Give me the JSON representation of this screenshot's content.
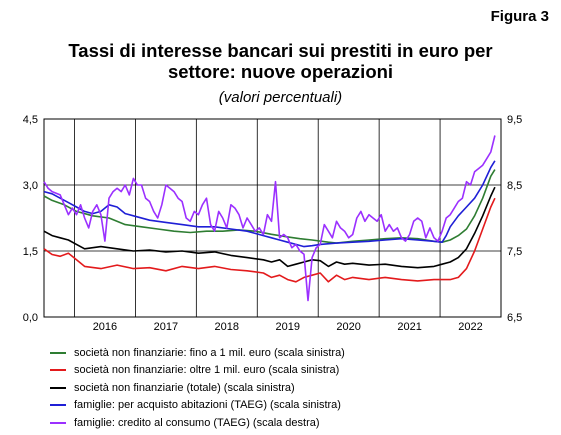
{
  "figure_label": "Figura 3",
  "title_line1": "Tassi di interesse bancari sui prestiti in euro per",
  "title_line2": "settore: nuove operazioni",
  "subtitle": "(valori percentuali)",
  "chart_data": {
    "type": "line",
    "x_range": [
      "2015-07",
      "2022-12"
    ],
    "x_tick_labels": [
      "2016",
      "2017",
      "2018",
      "2019",
      "2020",
      "2021",
      "2022"
    ],
    "y_left": {
      "ticks": [
        "0,0",
        "1,5",
        "3,0",
        "4,5"
      ],
      "min": 0,
      "max": 4.5
    },
    "y_right": {
      "ticks": [
        "6,5",
        "7,5",
        "8,5",
        "9,5"
      ],
      "min": 6.5,
      "max": 9.5
    },
    "grid": true,
    "legend_position": "bottom",
    "series": [
      {
        "name": "società non finanziarie: fino a 1 mil. euro (scala sinistra)",
        "color": "#2e7d32",
        "axis": "left",
        "anchors": [
          [
            0,
            2.75
          ],
          [
            2,
            2.65
          ],
          [
            5,
            2.55
          ],
          [
            8,
            2.4
          ],
          [
            12,
            2.3
          ],
          [
            16,
            2.25
          ],
          [
            20,
            2.1
          ],
          [
            24,
            2.05
          ],
          [
            28,
            2.0
          ],
          [
            32,
            1.95
          ],
          [
            36,
            1.92
          ],
          [
            40,
            1.95
          ],
          [
            44,
            1.95
          ],
          [
            48,
            1.98
          ],
          [
            52,
            1.95
          ],
          [
            56,
            1.88
          ],
          [
            60,
            1.82
          ],
          [
            63,
            1.78
          ],
          [
            66,
            1.75
          ],
          [
            70,
            1.7
          ],
          [
            72,
            1.68
          ],
          [
            76,
            1.72
          ],
          [
            80,
            1.75
          ],
          [
            84,
            1.78
          ],
          [
            88,
            1.8
          ],
          [
            92,
            1.78
          ],
          [
            96,
            1.72
          ],
          [
            98,
            1.7
          ],
          [
            100,
            1.75
          ],
          [
            102,
            1.85
          ],
          [
            104,
            2.0
          ],
          [
            106,
            2.3
          ],
          [
            108,
            2.7
          ],
          [
            110,
            3.2
          ],
          [
            111,
            3.35
          ]
        ]
      },
      {
        "name": "società non finanziarie: oltre 1 mil. euro (scala sinistra)",
        "color": "#e31a1c",
        "axis": "left",
        "anchors": [
          [
            0,
            1.55
          ],
          [
            2,
            1.42
          ],
          [
            4,
            1.38
          ],
          [
            6,
            1.45
          ],
          [
            8,
            1.3
          ],
          [
            10,
            1.15
          ],
          [
            14,
            1.1
          ],
          [
            18,
            1.18
          ],
          [
            22,
            1.1
          ],
          [
            26,
            1.12
          ],
          [
            30,
            1.05
          ],
          [
            34,
            1.15
          ],
          [
            38,
            1.1
          ],
          [
            42,
            1.15
          ],
          [
            46,
            1.08
          ],
          [
            50,
            1.05
          ],
          [
            54,
            1.0
          ],
          [
            56,
            0.9
          ],
          [
            58,
            0.95
          ],
          [
            60,
            0.85
          ],
          [
            62,
            0.8
          ],
          [
            64,
            0.9
          ],
          [
            66,
            0.95
          ],
          [
            68,
            1.0
          ],
          [
            70,
            0.8
          ],
          [
            72,
            0.95
          ],
          [
            74,
            0.85
          ],
          [
            76,
            0.9
          ],
          [
            80,
            0.85
          ],
          [
            84,
            0.9
          ],
          [
            88,
            0.85
          ],
          [
            92,
            0.82
          ],
          [
            96,
            0.85
          ],
          [
            100,
            0.85
          ],
          [
            102,
            0.9
          ],
          [
            104,
            1.1
          ],
          [
            106,
            1.5
          ],
          [
            108,
            2.0
          ],
          [
            110,
            2.5
          ],
          [
            111,
            2.7
          ]
        ]
      },
      {
        "name": "società non finanziarie (totale) (scala sinistra)",
        "color": "#000000",
        "axis": "left",
        "anchors": [
          [
            0,
            1.95
          ],
          [
            2,
            1.85
          ],
          [
            4,
            1.8
          ],
          [
            6,
            1.75
          ],
          [
            8,
            1.65
          ],
          [
            10,
            1.55
          ],
          [
            14,
            1.6
          ],
          [
            18,
            1.55
          ],
          [
            22,
            1.5
          ],
          [
            26,
            1.52
          ],
          [
            30,
            1.48
          ],
          [
            34,
            1.5
          ],
          [
            38,
            1.45
          ],
          [
            42,
            1.48
          ],
          [
            46,
            1.4
          ],
          [
            50,
            1.35
          ],
          [
            54,
            1.3
          ],
          [
            56,
            1.25
          ],
          [
            58,
            1.3
          ],
          [
            60,
            1.15
          ],
          [
            62,
            1.2
          ],
          [
            64,
            1.25
          ],
          [
            66,
            1.3
          ],
          [
            68,
            1.28
          ],
          [
            70,
            1.15
          ],
          [
            72,
            1.25
          ],
          [
            74,
            1.2
          ],
          [
            76,
            1.22
          ],
          [
            80,
            1.18
          ],
          [
            84,
            1.2
          ],
          [
            88,
            1.15
          ],
          [
            92,
            1.12
          ],
          [
            96,
            1.15
          ],
          [
            98,
            1.2
          ],
          [
            100,
            1.25
          ],
          [
            102,
            1.35
          ],
          [
            104,
            1.55
          ],
          [
            106,
            1.9
          ],
          [
            108,
            2.3
          ],
          [
            110,
            2.75
          ],
          [
            111,
            2.95
          ]
        ]
      },
      {
        "name": "famiglie: per acquisto abitazioni (TAEG) (scala sinistra)",
        "color": "#1f1fd6",
        "axis": "left",
        "anchors": [
          [
            0,
            2.85
          ],
          [
            2,
            2.8
          ],
          [
            4,
            2.7
          ],
          [
            6,
            2.6
          ],
          [
            8,
            2.5
          ],
          [
            10,
            2.4
          ],
          [
            12,
            2.35
          ],
          [
            14,
            2.4
          ],
          [
            16,
            2.55
          ],
          [
            18,
            2.5
          ],
          [
            20,
            2.35
          ],
          [
            22,
            2.3
          ],
          [
            26,
            2.2
          ],
          [
            30,
            2.15
          ],
          [
            34,
            2.1
          ],
          [
            38,
            2.05
          ],
          [
            42,
            2.05
          ],
          [
            46,
            2.0
          ],
          [
            50,
            1.95
          ],
          [
            52,
            1.9
          ],
          [
            54,
            1.85
          ],
          [
            56,
            1.8
          ],
          [
            58,
            1.75
          ],
          [
            60,
            1.7
          ],
          [
            62,
            1.65
          ],
          [
            64,
            1.6
          ],
          [
            66,
            1.62
          ],
          [
            68,
            1.65
          ],
          [
            72,
            1.68
          ],
          [
            76,
            1.7
          ],
          [
            80,
            1.72
          ],
          [
            84,
            1.75
          ],
          [
            88,
            1.78
          ],
          [
            92,
            1.75
          ],
          [
            96,
            1.72
          ],
          [
            98,
            1.7
          ],
          [
            99,
            1.85
          ],
          [
            100,
            2.05
          ],
          [
            102,
            2.3
          ],
          [
            104,
            2.5
          ],
          [
            106,
            2.7
          ],
          [
            108,
            3.0
          ],
          [
            110,
            3.4
          ],
          [
            111,
            3.55
          ]
        ]
      },
      {
        "name": "famiglie: credito al consumo (TAEG) (scala destra)",
        "color": "#9b30ff",
        "axis": "right",
        "anchors": [
          [
            0,
            8.55
          ],
          [
            1,
            8.45
          ],
          [
            2,
            8.4
          ],
          [
            4,
            8.35
          ],
          [
            5,
            8.2
          ],
          [
            6,
            8.05
          ],
          [
            7,
            8.15
          ],
          [
            8,
            8.05
          ],
          [
            9,
            8.2
          ],
          [
            10,
            8.0
          ],
          [
            11,
            7.85
          ],
          [
            12,
            8.1
          ],
          [
            13,
            8.2
          ],
          [
            14,
            8.05
          ],
          [
            15,
            7.65
          ],
          [
            16,
            8.3
          ],
          [
            17,
            8.4
          ],
          [
            18,
            8.45
          ],
          [
            19,
            8.4
          ],
          [
            20,
            8.5
          ],
          [
            21,
            8.35
          ],
          [
            22,
            8.6
          ],
          [
            23,
            8.5
          ],
          [
            24,
            8.5
          ],
          [
            25,
            8.3
          ],
          [
            26,
            8.25
          ],
          [
            27,
            8.1
          ],
          [
            28,
            8.0
          ],
          [
            29,
            8.2
          ],
          [
            30,
            8.5
          ],
          [
            31,
            8.45
          ],
          [
            32,
            8.4
          ],
          [
            33,
            8.3
          ],
          [
            34,
            8.25
          ],
          [
            35,
            8.0
          ],
          [
            36,
            7.95
          ],
          [
            37,
            8.1
          ],
          [
            38,
            8.05
          ],
          [
            39,
            8.2
          ],
          [
            40,
            8.3
          ],
          [
            41,
            7.9
          ],
          [
            42,
            7.8
          ],
          [
            43,
            8.1
          ],
          [
            44,
            8.0
          ],
          [
            45,
            7.85
          ],
          [
            46,
            8.2
          ],
          [
            47,
            8.15
          ],
          [
            48,
            8.05
          ],
          [
            49,
            7.85
          ],
          [
            50,
            8.0
          ],
          [
            51,
            7.9
          ],
          [
            52,
            7.8
          ],
          [
            53,
            7.85
          ],
          [
            54,
            7.75
          ],
          [
            55,
            8.05
          ],
          [
            56,
            7.95
          ],
          [
            57,
            8.55
          ],
          [
            58,
            7.7
          ],
          [
            59,
            7.75
          ],
          [
            60,
            7.7
          ],
          [
            61,
            7.55
          ],
          [
            62,
            7.6
          ],
          [
            63,
            7.5
          ],
          [
            64,
            7.45
          ],
          [
            65,
            6.75
          ],
          [
            66,
            7.4
          ],
          [
            67,
            7.55
          ],
          [
            68,
            7.6
          ],
          [
            69,
            7.9
          ],
          [
            70,
            7.8
          ],
          [
            71,
            7.7
          ],
          [
            72,
            7.95
          ],
          [
            73,
            7.85
          ],
          [
            74,
            7.8
          ],
          [
            75,
            7.7
          ],
          [
            76,
            7.75
          ],
          [
            77,
            8.0
          ],
          [
            78,
            8.1
          ],
          [
            79,
            7.95
          ],
          [
            80,
            8.05
          ],
          [
            81,
            8.0
          ],
          [
            82,
            7.95
          ],
          [
            83,
            8.05
          ],
          [
            84,
            7.8
          ],
          [
            85,
            7.9
          ],
          [
            86,
            7.8
          ],
          [
            87,
            7.85
          ],
          [
            88,
            7.7
          ],
          [
            89,
            7.65
          ],
          [
            90,
            7.75
          ],
          [
            91,
            7.95
          ],
          [
            92,
            8.0
          ],
          [
            93,
            7.95
          ],
          [
            94,
            7.7
          ],
          [
            95,
            7.85
          ],
          [
            96,
            7.7
          ],
          [
            97,
            7.65
          ],
          [
            98,
            7.8
          ],
          [
            99,
            8.0
          ],
          [
            100,
            8.05
          ],
          [
            101,
            8.15
          ],
          [
            102,
            8.25
          ],
          [
            103,
            8.3
          ],
          [
            104,
            8.55
          ],
          [
            105,
            8.5
          ],
          [
            106,
            8.7
          ],
          [
            107,
            8.75
          ],
          [
            108,
            8.8
          ],
          [
            109,
            8.9
          ],
          [
            110,
            9.0
          ],
          [
            111,
            9.25
          ]
        ]
      }
    ]
  }
}
